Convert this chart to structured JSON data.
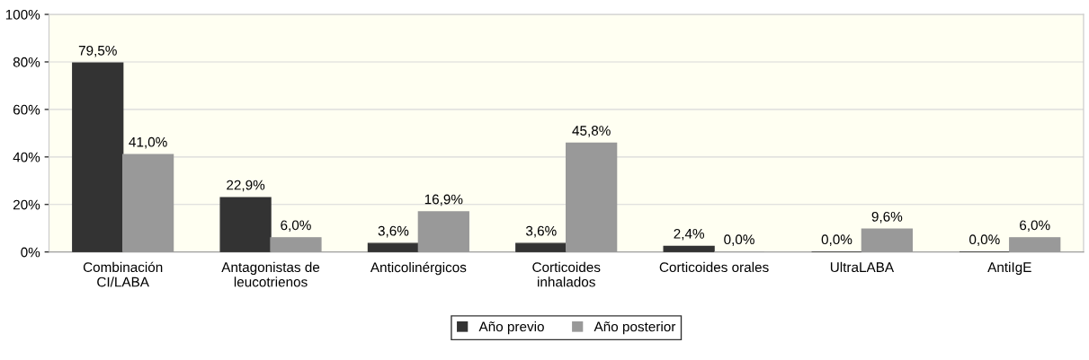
{
  "chart_data": {
    "type": "bar",
    "categories": [
      "Combinación\nCI/LABA",
      "Antagonistas de\nleucotrienos",
      "Anticolinérgicos",
      "Corticoides\ninhalados",
      "Corticoides orales",
      "UltraLABA",
      "AntiIgE"
    ],
    "series": [
      {
        "name": "Año previo",
        "color": "#333333",
        "values": [
          79.5,
          22.9,
          3.6,
          3.6,
          2.4,
          0.0,
          0.0
        ],
        "value_labels": [
          "79,5%",
          "22,9%",
          "3,6%",
          "3,6%",
          "2,4%",
          "0,0%",
          "0,0%"
        ]
      },
      {
        "name": "Año posterior",
        "color": "#999999",
        "values": [
          41.0,
          6.0,
          16.9,
          45.8,
          0.0,
          9.6,
          6.0
        ],
        "value_labels": [
          "41,0%",
          "6,0%",
          "16,9%",
          "45,8%",
          "0,0%",
          "9,6%",
          "6,0%"
        ]
      }
    ],
    "ylim": [
      0,
      100
    ],
    "yticks": [
      {
        "value": 0,
        "label": "0%"
      },
      {
        "value": 20,
        "label": "20%"
      },
      {
        "value": 40,
        "label": "40%"
      },
      {
        "value": 60,
        "label": "60%"
      },
      {
        "value": 80,
        "label": "80%"
      },
      {
        "value": 100,
        "label": "100%"
      }
    ],
    "grid": "y",
    "legend": "bottom"
  }
}
